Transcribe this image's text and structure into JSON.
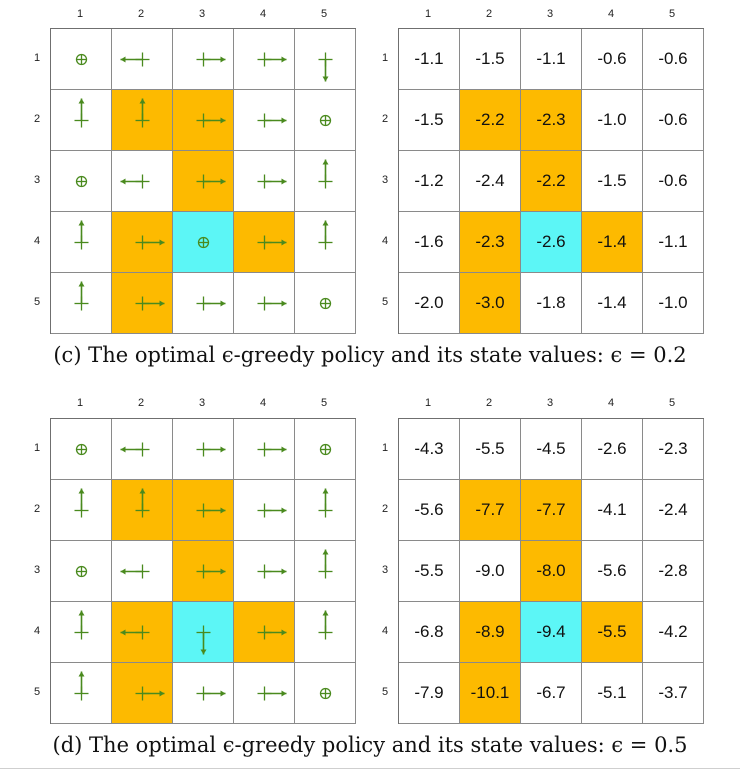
{
  "col_headers": [
    "1",
    "2",
    "3",
    "4",
    "5"
  ],
  "row_headers": [
    "1",
    "2",
    "3",
    "4",
    "5"
  ],
  "colors": {
    "forbidden": "#fdba00",
    "target": "#5cf6f6",
    "arrow": "#4a8a1e"
  },
  "cell_types": [
    [
      "n",
      "n",
      "n",
      "n",
      "n"
    ],
    [
      "n",
      "f",
      "f",
      "n",
      "n"
    ],
    [
      "n",
      "n",
      "f",
      "n",
      "n"
    ],
    [
      "n",
      "f",
      "t",
      "f",
      "n"
    ],
    [
      "n",
      "f",
      "n",
      "n",
      "n"
    ]
  ],
  "figures": [
    {
      "caption": "(c) The optimal ϵ-greedy policy and its state values: ϵ = 0.2",
      "policy": [
        [
          "stay",
          "left",
          "right",
          "right",
          "down"
        ],
        [
          "up",
          "up",
          "right",
          "right",
          "stay"
        ],
        [
          "stay",
          "left",
          "right",
          "right",
          "up"
        ],
        [
          "up",
          "right",
          "stay",
          "right",
          "up"
        ],
        [
          "up",
          "right",
          "right",
          "right",
          "stay"
        ]
      ],
      "values": [
        [
          "-1.1",
          "-1.5",
          "-1.1",
          "-0.6",
          "-0.6"
        ],
        [
          "-1.5",
          "-2.2",
          "-2.3",
          "-1.0",
          "-0.6"
        ],
        [
          "-1.2",
          "-2.4",
          "-2.2",
          "-1.5",
          "-0.6"
        ],
        [
          "-1.6",
          "-2.3",
          "-2.6",
          "-1.4",
          "-1.1"
        ],
        [
          "-2.0",
          "-3.0",
          "-1.8",
          "-1.4",
          "-1.0"
        ]
      ]
    },
    {
      "caption": "(d) The optimal ϵ-greedy policy and its state values: ϵ = 0.5",
      "policy": [
        [
          "stay",
          "left",
          "right",
          "right",
          "stay"
        ],
        [
          "up",
          "up",
          "right",
          "right",
          "up"
        ],
        [
          "stay",
          "left",
          "right",
          "right",
          "up"
        ],
        [
          "up",
          "left",
          "down",
          "right",
          "up"
        ],
        [
          "up",
          "right",
          "right",
          "right",
          "stay"
        ]
      ],
      "values": [
        [
          "-4.3",
          "-5.5",
          "-4.5",
          "-2.6",
          "-2.3"
        ],
        [
          "-5.6",
          "-7.7",
          "-7.7",
          "-4.1",
          "-2.4"
        ],
        [
          "-5.5",
          "-9.0",
          "-8.0",
          "-5.6",
          "-2.8"
        ],
        [
          "-6.8",
          "-8.9",
          "-9.4",
          "-5.5",
          "-4.2"
        ],
        [
          "-7.9",
          "-10.1",
          "-6.7",
          "-5.1",
          "-3.7"
        ]
      ]
    }
  ]
}
